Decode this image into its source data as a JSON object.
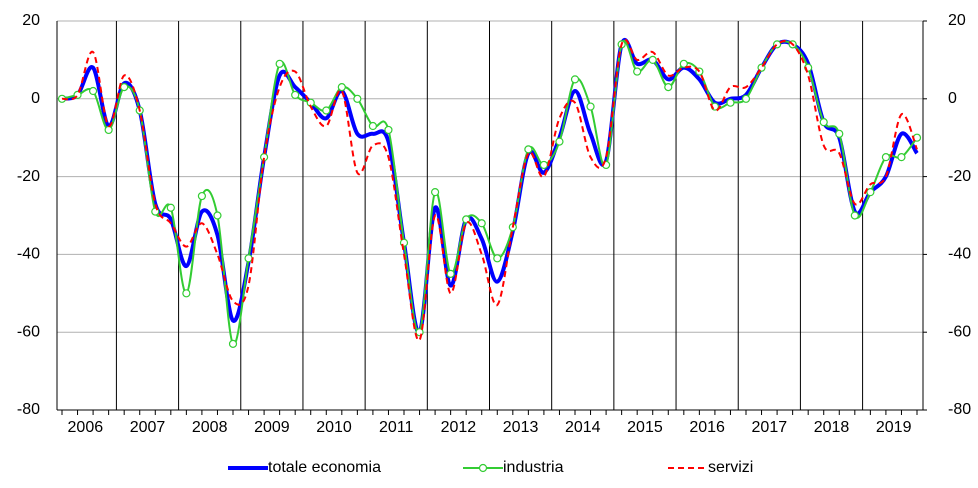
{
  "chart_data": {
    "type": "line",
    "categories": [
      "2006",
      null,
      null,
      null,
      "2007",
      null,
      null,
      null,
      "2008",
      null,
      null,
      null,
      "2009",
      null,
      null,
      null,
      "2010",
      null,
      null,
      null,
      "2011",
      null,
      null,
      null,
      "2012",
      null,
      null,
      null,
      "2013",
      null,
      null,
      null,
      "2014",
      null,
      null,
      null,
      "2015",
      null,
      null,
      null,
      "2016",
      null,
      null,
      null,
      "2017",
      null,
      null,
      null,
      "2018",
      null,
      null,
      null,
      "2019",
      null,
      null,
      null
    ],
    "series": [
      {
        "name": "totale economia",
        "color": "#0000ff",
        "values": [
          0,
          1,
          8,
          -7,
          4,
          -3,
          -27,
          -31,
          -43,
          -29,
          -35,
          -57,
          -42,
          -15,
          6,
          3,
          -1,
          -5,
          2,
          -9,
          -9,
          -11,
          -37,
          -60,
          -28,
          -48,
          -31,
          -36,
          -47,
          -34,
          -14,
          -19,
          -10,
          2,
          -9,
          -16,
          14,
          9,
          10,
          5,
          8,
          5,
          -1,
          0,
          1,
          8,
          14,
          14,
          9,
          -6,
          -10,
          -29,
          -24,
          -20,
          -9,
          -14
        ]
      },
      {
        "name": "industria",
        "color": "#33cc33",
        "values": [
          0,
          1,
          2,
          -8,
          3,
          -3,
          -29,
          -28,
          -50,
          -25,
          -30,
          -63,
          -41,
          -15,
          9,
          1,
          -1,
          -3,
          3,
          0,
          -7,
          -8,
          -37,
          -60,
          -24,
          -45,
          -31,
          -32,
          -41,
          -33,
          -13,
          -17,
          -11,
          5,
          -2,
          -17,
          14,
          7,
          10,
          3,
          9,
          7,
          -2,
          -1,
          0,
          8,
          14,
          14,
          8,
          -6,
          -9,
          -30,
          -24,
          -15,
          -15,
          -10
        ]
      },
      {
        "name": "servizi",
        "color": "#ff0000",
        "values": [
          0,
          1,
          12,
          -7,
          6,
          -3,
          -27,
          -32,
          -38,
          -32,
          -40,
          -52,
          -48,
          -15,
          3,
          7,
          -2,
          -7,
          2,
          -19,
          -12,
          -15,
          -40,
          -62,
          -30,
          -50,
          -32,
          -40,
          -53,
          -33,
          -14,
          -20,
          -5,
          -1,
          -15,
          -15,
          14,
          10,
          12,
          6,
          8,
          7,
          -3,
          3,
          3,
          8,
          14,
          14,
          6,
          -12,
          -14,
          -27,
          -22,
          -20,
          -4,
          -13
        ]
      }
    ],
    "ylim": [
      -80,
      20
    ],
    "yticks": [
      -80,
      -60,
      -40,
      -20,
      0,
      20
    ],
    "y2lim": [
      -80,
      20
    ],
    "y2ticks": [
      -80,
      -60,
      -40,
      -20,
      0,
      20
    ],
    "grid": true,
    "legend": "bottom"
  }
}
